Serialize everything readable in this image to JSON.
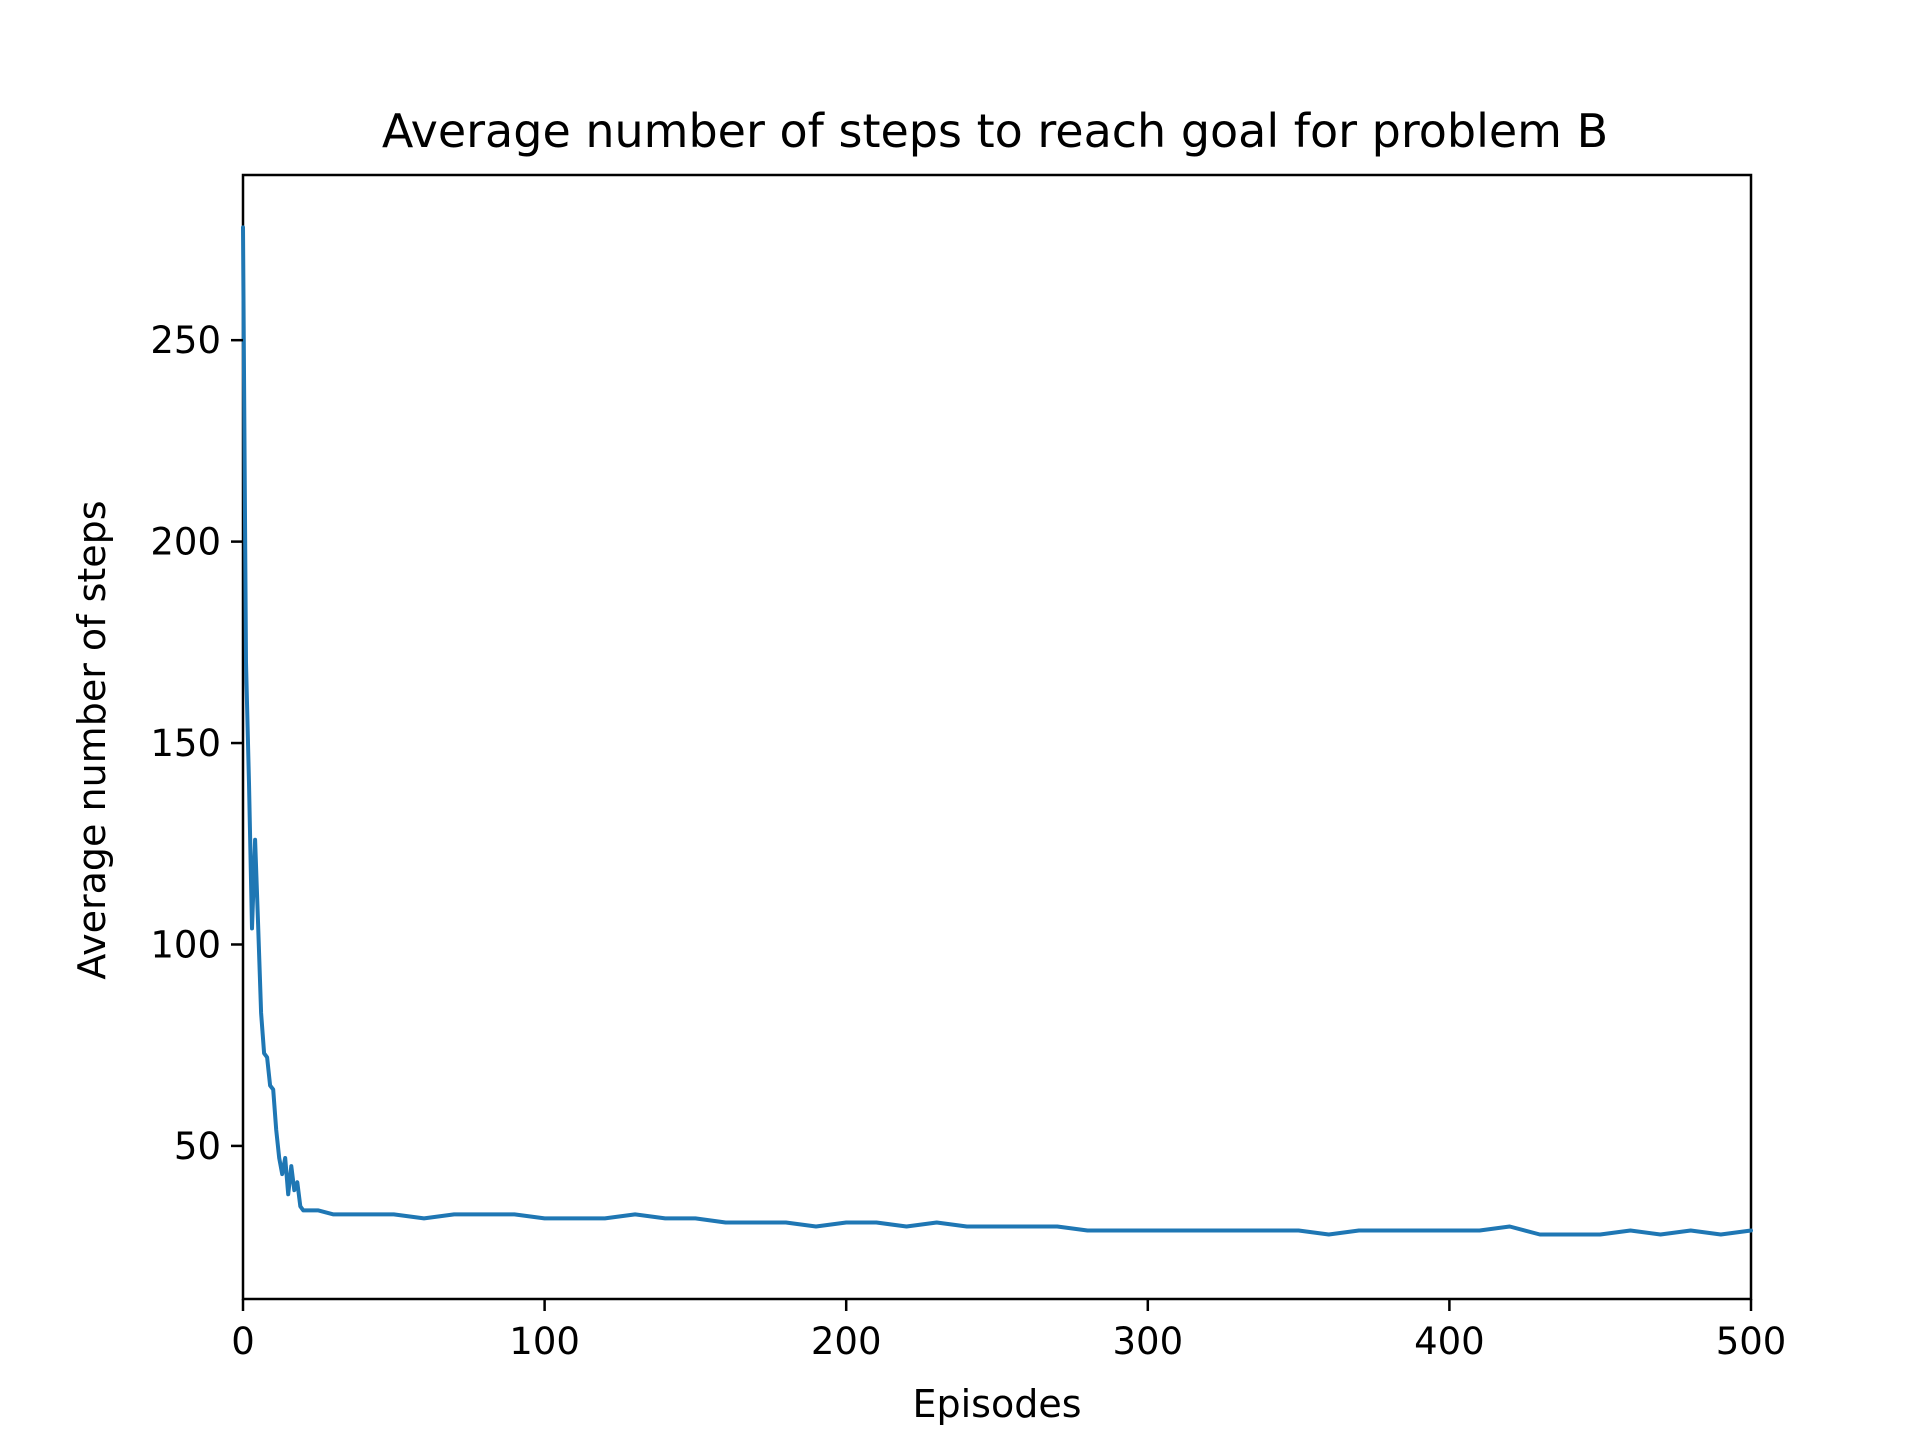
{
  "chart_data": {
    "type": "line",
    "title": "Average number of steps to reach goal for problem B",
    "xlabel": "Episodes",
    "ylabel": "Average number of steps",
    "xlim": [
      0,
      500
    ],
    "ylim": [
      12,
      291
    ],
    "xticks": [
      0,
      100,
      200,
      300,
      400,
      500
    ],
    "yticks": [
      50,
      100,
      150,
      200,
      250
    ],
    "grid": false,
    "legend": "none",
    "series": [
      {
        "color": "#1f77b4",
        "x": [
          0,
          1,
          2,
          3,
          4,
          5,
          6,
          7,
          8,
          9,
          10,
          11,
          12,
          13,
          14,
          15,
          16,
          17,
          18,
          19,
          20,
          25,
          30,
          40,
          50,
          60,
          70,
          80,
          90,
          100,
          110,
          120,
          130,
          140,
          150,
          160,
          170,
          180,
          190,
          200,
          210,
          220,
          230,
          240,
          250,
          260,
          270,
          280,
          290,
          300,
          310,
          320,
          330,
          340,
          350,
          360,
          370,
          380,
          390,
          400,
          410,
          420,
          430,
          440,
          450,
          460,
          470,
          480,
          490,
          500
        ],
        "y": [
          278,
          170,
          140,
          104,
          126,
          105,
          83,
          73,
          72,
          65,
          64,
          54,
          47,
          43,
          47,
          38,
          45,
          39,
          41,
          35,
          34,
          34,
          33,
          33,
          33,
          32,
          33,
          33,
          33,
          32,
          32,
          32,
          33,
          32,
          32,
          31,
          31,
          31,
          30,
          31,
          31,
          30,
          31,
          30,
          30,
          30,
          30,
          29,
          29,
          29,
          29,
          29,
          29,
          29,
          29,
          28,
          29,
          29,
          29,
          29,
          29,
          30,
          28,
          28,
          28,
          29,
          28,
          29,
          28,
          29
        ]
      }
    ]
  }
}
